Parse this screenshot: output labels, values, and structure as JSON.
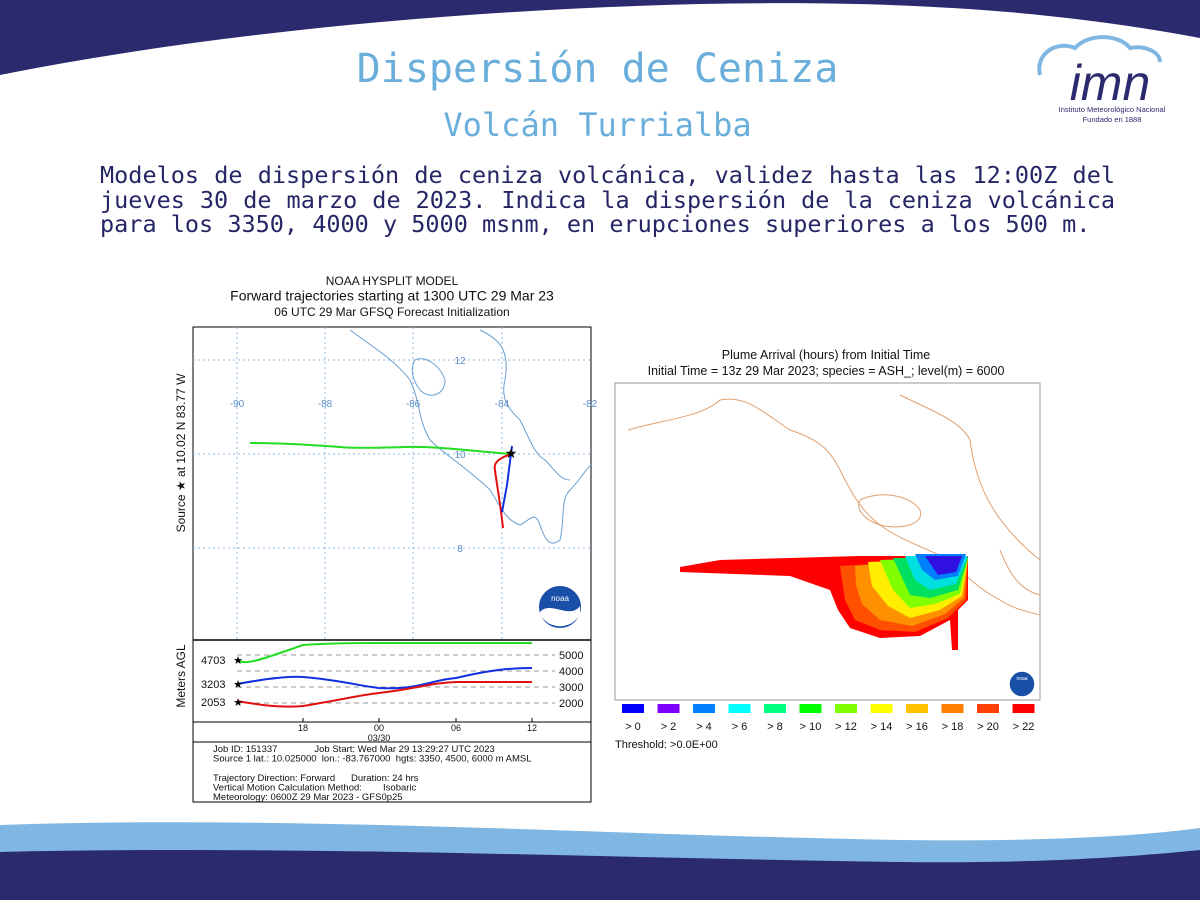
{
  "header": {
    "title": "Dispersión de Ceniza",
    "subtitle": "Volcán Turrialba"
  },
  "logo": {
    "name": "imn",
    "line1": "Instituto Meteorológico Nacional",
    "line2": "Fundado en 1888"
  },
  "description": "Modelos de dispersión de ceniza volcánica, validez  hasta  las  12:00Z del jueves 30 de marzo de 2023. Indica  la  dispersión  de  la  ceniza volcánica para los 3350, 4000 y 5000 msnm, en erupciones superiores  a los 500 m.",
  "hysplit": {
    "title_lines": [
      "NOAA HYSPLIT MODEL",
      "Forward trajectories starting at 1300 UTC 29 Mar 23",
      "06 UTC 29 Mar   GFSQ  Forecast Initialization"
    ],
    "source_label": "Source ★ at 10.02 N  83.77 W",
    "lon_ticks": [
      "-90",
      "-88",
      "-86",
      "-84",
      "-82"
    ],
    "lat_ticks": [
      "12",
      "10",
      "8"
    ],
    "logo": "noaa",
    "height_axis_label": "Meters AGL",
    "start_heights": [
      "4703",
      "3203",
      "2053"
    ],
    "height_ticks": [
      "5000",
      "4000",
      "3000",
      "2000"
    ],
    "time_ticks": [
      "18",
      "00",
      "06",
      "12"
    ],
    "date_label": "03/30",
    "info_lines": [
      "Job ID: 151337              Job Start: Wed Mar 29 13:29:27 UTC 2023",
      "Source 1 lat.: 10.025000  lon.: -83.767000  hgts: 3350, 4500, 6000 m AMSL",
      "",
      "Trajectory Direction: Forward      Duration: 24 hrs",
      "Vertical Motion Calculation Method:        Isobaric",
      "Meteorology: 0600Z 29 Mar 2023 - GFS0p25"
    ]
  },
  "plume": {
    "title_lines": [
      "Plume Arrival (hours) from Initial Time",
      "Initial Time = 13z 29 Mar 2023;  species = ASH_;  level(m) =  6000"
    ],
    "legend": [
      {
        "label": "> 0",
        "color": "#0000ff"
      },
      {
        "label": "> 2",
        "color": "#8000ff"
      },
      {
        "label": "> 4",
        "color": "#0080ff"
      },
      {
        "label": "> 6",
        "color": "#00ffff"
      },
      {
        "label": "> 8",
        "color": "#00ff80"
      },
      {
        "label": "> 10",
        "color": "#00ff00"
      },
      {
        "label": "> 12",
        "color": "#80ff00"
      },
      {
        "label": "> 14",
        "color": "#ffff00"
      },
      {
        "label": "> 16",
        "color": "#ffc000"
      },
      {
        "label": "> 18",
        "color": "#ff8000"
      },
      {
        "label": "> 20",
        "color": "#ff4000"
      },
      {
        "label": "> 22",
        "color": "#ff0000"
      }
    ],
    "threshold": "Threshold: >0.0E+00",
    "logo": "noaa"
  }
}
